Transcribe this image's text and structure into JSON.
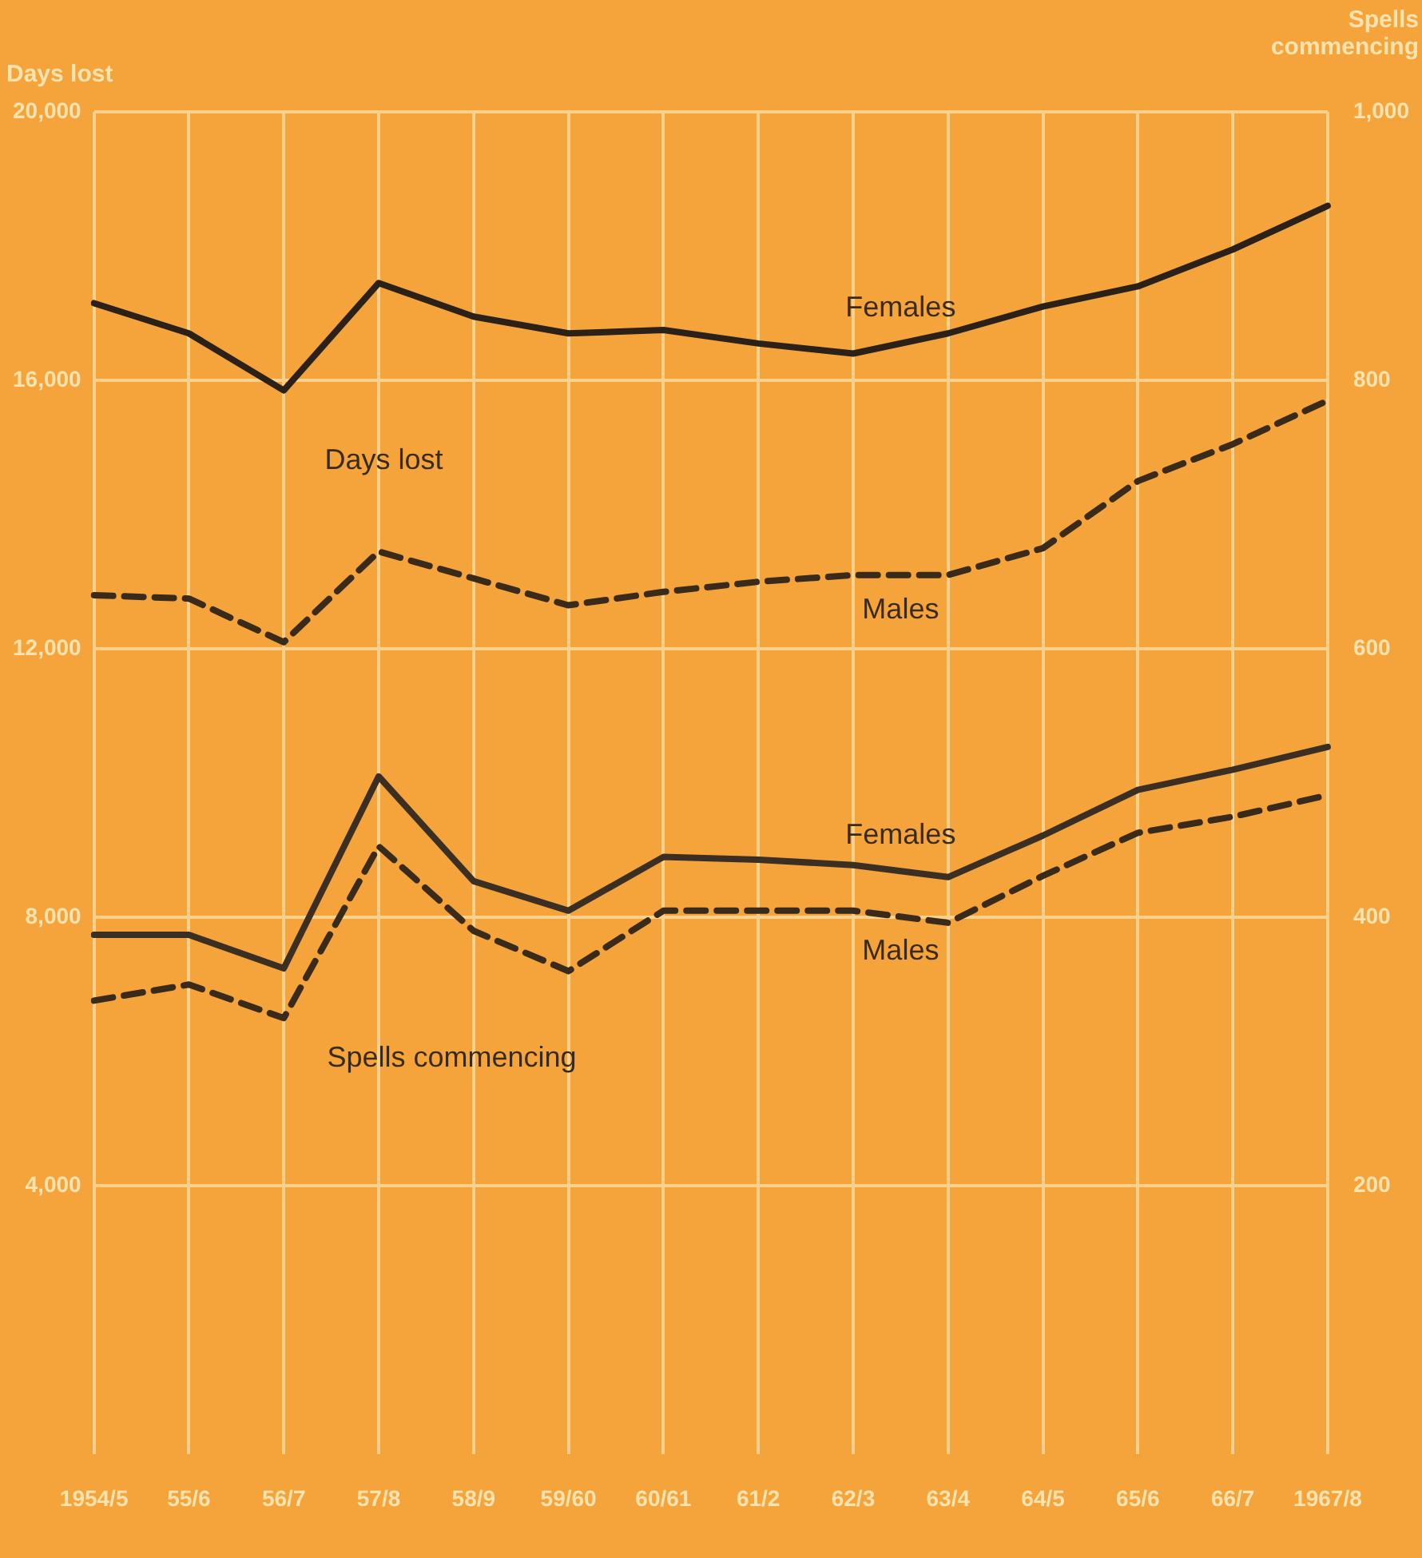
{
  "chart_data": {
    "type": "line",
    "ylabel": "Days lost",
    "y2label": "Spells commencing",
    "categories": [
      "1954/5",
      "55/6",
      "56/7",
      "57/8",
      "58/9",
      "59/60",
      "60/61",
      "61/2",
      "62/3",
      "63/4",
      "64/5",
      "65/6",
      "66/7",
      "1967/8"
    ],
    "series": [
      {
        "name": "Females",
        "color": "#2b2118",
        "line_style": "solid",
        "values": [
          17150,
          16700,
          15850,
          17450,
          16950,
          16700,
          16750,
          16550,
          16400,
          16700,
          17100,
          17400,
          17950,
          18600
        ]
      },
      {
        "name": "Males",
        "color": "#3a2a1a",
        "line_style": "dashed",
        "values": [
          12800,
          12750,
          12100,
          13450,
          13050,
          12650,
          12850,
          13000,
          13100,
          13100,
          13500,
          14500,
          15050,
          15700
        ]
      },
      {
        "name": "Females",
        "color": "#3b2e22",
        "line_style": "solid",
        "axis": "y2",
        "values": [
          387,
          387,
          362,
          505,
          427,
          405,
          445,
          443,
          439,
          430,
          461,
          495,
          510,
          527
        ]
      },
      {
        "name": "Males",
        "color": "#3a2a1a",
        "line_style": "dashed",
        "axis": "y2",
        "values": [
          338,
          350,
          325,
          453,
          390,
          360,
          405,
          405,
          405,
          396,
          431,
          463,
          475,
          491
        ]
      }
    ],
    "ylim": [
      0,
      20000
    ],
    "yticks": [
      {
        "value": 4000,
        "label": "4,000"
      },
      {
        "value": 8000,
        "label": "8,000"
      },
      {
        "value": 12000,
        "label": "12,000"
      },
      {
        "value": 16000,
        "label": "16,000"
      },
      {
        "value": 20000,
        "label": "20,000"
      }
    ],
    "y2lim": [
      0,
      1000
    ],
    "y2ticks": [
      200,
      400,
      600,
      800,
      {
        "value": 1000,
        "label": "1,000"
      }
    ],
    "grid": true,
    "marker": "none",
    "annotations": [
      "Days lost",
      "Spells commencing"
    ]
  }
}
